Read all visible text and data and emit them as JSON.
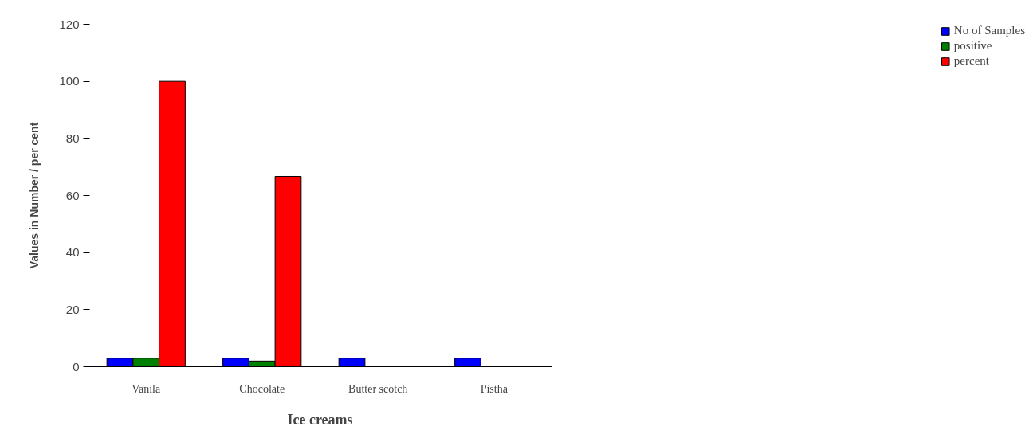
{
  "chart_data": {
    "type": "bar",
    "xlabel": "Ice creams",
    "ylabel": "Values in Number / per cent",
    "categories": [
      "Vanila",
      "Chocolate",
      "Butter scotch",
      "Pistha"
    ],
    "series": [
      {
        "name": "No of Samples",
        "color": "#0000ff",
        "values": [
          3,
          3,
          3,
          3
        ]
      },
      {
        "name": "positive",
        "color": "#008000",
        "values": [
          3,
          2,
          0,
          0
        ]
      },
      {
        "name": "percent",
        "color": "#ff0000",
        "values": [
          100,
          66.7,
          0,
          0
        ]
      }
    ],
    "ylim": [
      0,
      120
    ],
    "yticks": [
      0,
      20,
      40,
      60,
      80,
      100,
      120
    ],
    "grid": false,
    "legend": "top right"
  }
}
